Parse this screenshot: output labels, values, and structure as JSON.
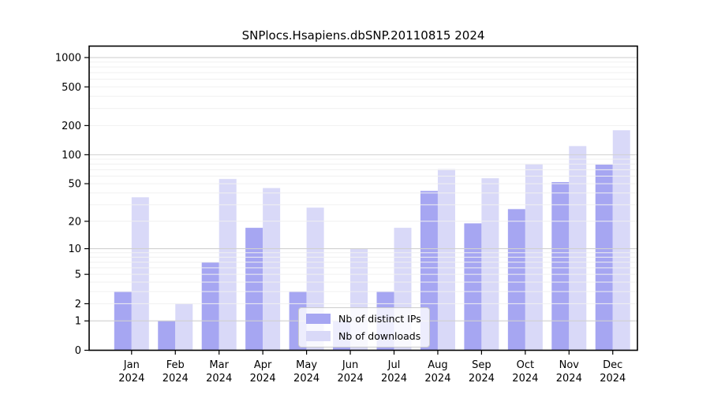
{
  "title": "SNPlocs.Hsapiens.dbSNP.20110815 2024",
  "colors": {
    "distinct_ips": "#a6a6f2",
    "downloads": "#d9d9f8",
    "grid_major": "#d0d0d0",
    "grid_minor": "#f0f0f0",
    "axis": "#000000",
    "text": "#000000",
    "legend_border": "#cccccc"
  },
  "legend": {
    "items": [
      {
        "label": "Nb of distinct IPs",
        "series": "distinct_ips"
      },
      {
        "label": "Nb of downloads",
        "series": "downloads"
      }
    ]
  },
  "y_axis": {
    "tick_values": [
      0,
      1,
      2,
      5,
      10,
      20,
      50,
      100,
      200,
      500,
      1000
    ]
  },
  "chart_data": {
    "type": "bar",
    "title": "SNPlocs.Hsapiens.dbSNP.20110815 2024",
    "categories": [
      "Jan 2024",
      "Feb 2024",
      "Mar 2024",
      "Apr 2024",
      "May 2024",
      "Jun 2024",
      "Jul 2024",
      "Aug 2024",
      "Sep 2024",
      "Oct 2024",
      "Nov 2024",
      "Dec 2024"
    ],
    "series": [
      {
        "name": "Nb of distinct IPs",
        "color_key": "distinct_ips",
        "values": [
          3,
          1,
          7,
          17,
          3,
          1,
          3,
          42,
          19,
          27,
          52,
          79
        ]
      },
      {
        "name": "Nb of downloads",
        "color_key": "downloads",
        "values": [
          36,
          2,
          56,
          45,
          28,
          10,
          17,
          71,
          57,
          80,
          123,
          179
        ]
      }
    ],
    "xlabel": "",
    "ylabel": "",
    "yscale": "log10(1+x)",
    "y_ticks": [
      0,
      1,
      2,
      5,
      10,
      20,
      50,
      100,
      200,
      500,
      1000
    ],
    "ylim": [
      0,
      1300
    ],
    "grid": true,
    "legend_position": "lower center"
  }
}
